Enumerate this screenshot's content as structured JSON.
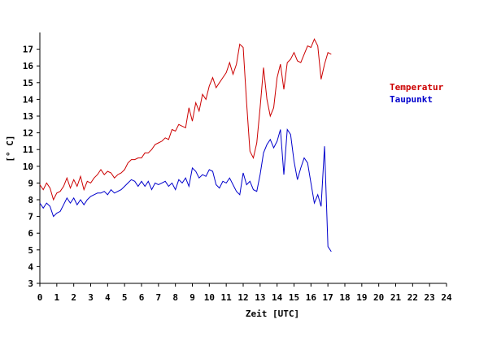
{
  "chart_data": {
    "type": "line",
    "xlabel": "Zeit [UTC]",
    "ylabel": "[° C]",
    "xlim": [
      0,
      24
    ],
    "ylim": [
      3,
      18
    ],
    "x_ticks": [
      "0",
      "1",
      "2",
      "3",
      "4",
      "5",
      "6",
      "7",
      "8",
      "9",
      "10",
      "11",
      "12",
      "13",
      "14",
      "15",
      "16",
      "17",
      "18",
      "19",
      "20",
      "21",
      "22",
      "23",
      "24"
    ],
    "y_ticks": [
      "3",
      "4",
      "5",
      "6",
      "7",
      "8",
      "9",
      "10",
      "11",
      "12",
      "13",
      "14",
      "15",
      "16",
      "17"
    ],
    "grid": false,
    "legend_position": "right",
    "series": [
      {
        "name": "Temperatur",
        "color": "#cc0000",
        "x": [
          0,
          0.2,
          0.4,
          0.6,
          0.8,
          1.0,
          1.2,
          1.4,
          1.6,
          1.8,
          2.0,
          2.2,
          2.4,
          2.6,
          2.8,
          3.0,
          3.2,
          3.4,
          3.6,
          3.8,
          4.0,
          4.2,
          4.4,
          4.6,
          4.8,
          5.0,
          5.2,
          5.4,
          5.6,
          5.8,
          6.0,
          6.2,
          6.4,
          6.6,
          6.8,
          7.0,
          7.2,
          7.4,
          7.6,
          7.8,
          8.0,
          8.2,
          8.4,
          8.6,
          8.8,
          9.0,
          9.2,
          9.4,
          9.6,
          9.8,
          10.0,
          10.2,
          10.4,
          10.6,
          10.8,
          11.0,
          11.2,
          11.4,
          11.6,
          11.8,
          12.0,
          12.2,
          12.4,
          12.6,
          12.8,
          13.0,
          13.2,
          13.4,
          13.6,
          13.8,
          14.0,
          14.2,
          14.4,
          14.6,
          14.8,
          15.0,
          15.2,
          15.4,
          15.6,
          15.8,
          16.0,
          16.2,
          16.4,
          16.6,
          16.8,
          17.0,
          17.2
        ],
        "values": [
          8.9,
          8.6,
          9.0,
          8.7,
          8.0,
          8.4,
          8.5,
          8.8,
          9.3,
          8.7,
          9.2,
          8.8,
          9.4,
          8.6,
          9.1,
          9.0,
          9.3,
          9.5,
          9.8,
          9.5,
          9.7,
          9.6,
          9.3,
          9.5,
          9.6,
          9.8,
          10.2,
          10.4,
          10.4,
          10.5,
          10.5,
          10.8,
          10.8,
          11.0,
          11.3,
          11.4,
          11.5,
          11.7,
          11.6,
          12.2,
          12.1,
          12.5,
          12.4,
          12.3,
          13.5,
          12.7,
          13.8,
          13.3,
          14.3,
          14.0,
          14.8,
          15.3,
          14.7,
          15.0,
          15.3,
          15.6,
          16.2,
          15.5,
          16.1,
          17.3,
          17.1,
          13.8,
          10.9,
          10.5,
          11.4,
          13.5,
          15.9,
          14.0,
          13.0,
          13.5,
          15.3,
          16.1,
          14.6,
          16.2,
          16.4,
          16.8,
          16.3,
          16.2,
          16.7,
          17.2,
          17.1,
          17.6,
          17.2,
          15.2,
          16.1,
          16.8,
          16.7
        ]
      },
      {
        "name": "Taupunkt",
        "color": "#0000cc",
        "x": [
          0,
          0.2,
          0.4,
          0.6,
          0.8,
          1.0,
          1.2,
          1.4,
          1.6,
          1.8,
          2.0,
          2.2,
          2.4,
          2.6,
          2.8,
          3.0,
          3.2,
          3.4,
          3.6,
          3.8,
          4.0,
          4.2,
          4.4,
          4.6,
          4.8,
          5.0,
          5.2,
          5.4,
          5.6,
          5.8,
          6.0,
          6.2,
          6.4,
          6.6,
          6.8,
          7.0,
          7.2,
          7.4,
          7.6,
          7.8,
          8.0,
          8.2,
          8.4,
          8.6,
          8.8,
          9.0,
          9.2,
          9.4,
          9.6,
          9.8,
          10.0,
          10.2,
          10.4,
          10.6,
          10.8,
          11.0,
          11.2,
          11.4,
          11.6,
          11.8,
          12.0,
          12.2,
          12.4,
          12.6,
          12.8,
          13.0,
          13.2,
          13.4,
          13.6,
          13.8,
          14.0,
          14.2,
          14.4,
          14.6,
          14.8,
          15.0,
          15.2,
          15.4,
          15.6,
          15.8,
          16.0,
          16.2,
          16.4,
          16.6,
          16.8,
          17.0,
          17.2
        ],
        "values": [
          7.8,
          7.5,
          7.8,
          7.6,
          7.0,
          7.2,
          7.3,
          7.7,
          8.1,
          7.8,
          8.1,
          7.7,
          8.0,
          7.7,
          8.0,
          8.2,
          8.3,
          8.4,
          8.4,
          8.5,
          8.3,
          8.6,
          8.4,
          8.5,
          8.6,
          8.8,
          9.0,
          9.2,
          9.1,
          8.8,
          9.1,
          8.8,
          9.1,
          8.6,
          9.0,
          8.9,
          9.0,
          9.1,
          8.8,
          9.0,
          8.6,
          9.2,
          9.0,
          9.3,
          8.8,
          9.9,
          9.7,
          9.3,
          9.5,
          9.4,
          9.8,
          9.7,
          8.9,
          8.7,
          9.1,
          9.0,
          9.3,
          8.9,
          8.5,
          8.3,
          9.6,
          8.9,
          9.1,
          8.6,
          8.5,
          9.5,
          10.8,
          11.3,
          11.6,
          11.1,
          11.5,
          12.2,
          9.5,
          12.2,
          11.9,
          10.3,
          9.2,
          9.9,
          10.5,
          10.2,
          9.0,
          7.8,
          8.3,
          7.6,
          11.2,
          5.2,
          4.9
        ]
      }
    ]
  }
}
